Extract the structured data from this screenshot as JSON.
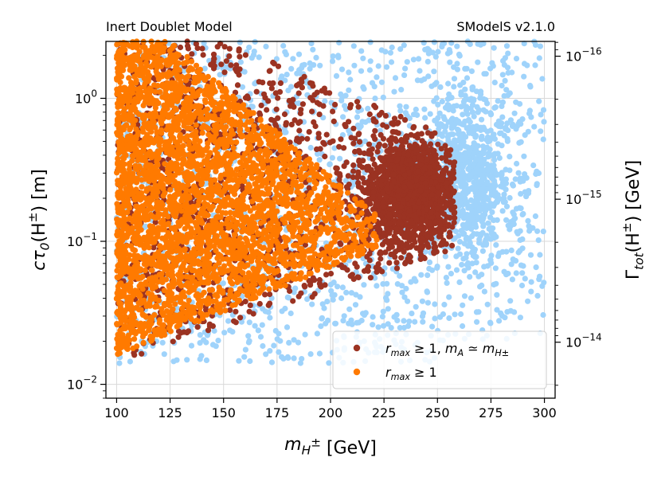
{
  "header": {
    "left_label": "Inert Doublet Model",
    "right_label": "SModelS v2.1.0"
  },
  "colors": {
    "excluded_mass_degenerate": "#9b3322",
    "excluded": "#ff7a00",
    "allowed": "#9fd3fb",
    "grid": "#d9d9d9",
    "axis": "#000000"
  },
  "chart_data": {
    "type": "scatter",
    "x_scale": "linear",
    "y_scale": "log",
    "y2_scale": "log",
    "xlim": [
      95,
      305
    ],
    "ylim": [
      0.008,
      2.5
    ],
    "y2_inverse_of_y": true,
    "grid": true,
    "legend_position": "lower-right",
    "xlabel": "m_{H±} [GeV]",
    "ylabel": "cτ₀(H±) [m]",
    "y2label": "Γ_tot(H±) [GeV]",
    "x_ticks": [
      "100",
      "125",
      "150",
      "175",
      "200",
      "225",
      "250",
      "275",
      "300"
    ],
    "y_ticks": [
      {
        "value": 1,
        "base": "10",
        "exp": "0"
      },
      {
        "value": 0.1,
        "base": "10",
        "exp": "−1"
      },
      {
        "value": 0.01,
        "base": "10",
        "exp": "−2"
      }
    ],
    "y2_ticks": [
      {
        "value": 1e-16,
        "base": "10",
        "exp": "−16"
      },
      {
        "value": 1e-15,
        "base": "10",
        "exp": "−15"
      },
      {
        "value": 1e-14,
        "base": "10",
        "exp": "−14"
      }
    ],
    "series": [
      {
        "key": "allowed",
        "color": "#9fd3fb",
        "count": 2200,
        "x_range": [
          100,
          300
        ],
        "y_range": [
          0.014,
          2.5
        ],
        "note_region": "fills the full mass range; densest around 255-270 GeV, 0.15-0.5 m"
      },
      {
        "key": "excluded_mass_degenerate",
        "name": "r_max ≥ 1, m_A ≃ m_{H±}",
        "color": "#9b3322",
        "count": 2600,
        "x_range": [
          100,
          258
        ],
        "y_range": [
          0.014,
          2.5
        ],
        "note_region": "dense core at 215-255 GeV, 0.12-0.4 m"
      },
      {
        "key": "excluded",
        "name": "r_max ≥ 1",
        "color": "#ff7a00",
        "count": 3400,
        "x_range": [
          100,
          222
        ],
        "y_range": [
          0.015,
          2.5
        ]
      }
    ],
    "legend": [
      {
        "series": "excluded_mass_degenerate",
        "label_main": "r",
        "label_sub": "max",
        "label_rest": " ≥ 1, ",
        "label_main2": "m",
        "label_sub2": "A",
        "label_rel": " ≃ ",
        "label_main3": "m",
        "label_sub3": "H±"
      },
      {
        "series": "excluded",
        "label_main": "r",
        "label_sub": "max",
        "label_rest": " ≥ 1"
      }
    ],
    "ylabel_parts": {
      "main": "cτ",
      "sub": "0",
      "paren": "(H",
      "sup": "±",
      "close": ") [m]"
    },
    "xlabel_parts": {
      "main": "m",
      "sub": "H",
      "sup": "±",
      "unit": "  [GeV]"
    },
    "y2label_parts": {
      "main": "Γ",
      "sub": "tot",
      "paren": "(H",
      "sup": "±",
      "close": ") [GeV]"
    }
  }
}
